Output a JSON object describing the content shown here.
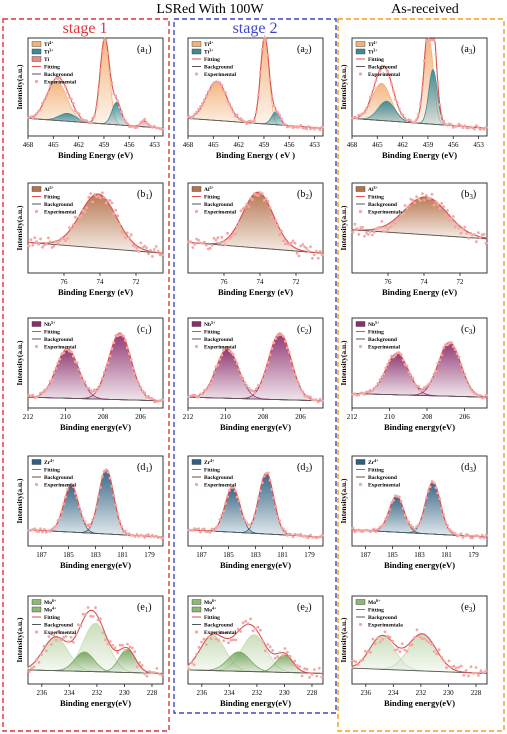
{
  "headers": {
    "top_left": "LSRed With 100W",
    "top_right": "As-received",
    "stage1": "stage 1",
    "stage2": "stage 2"
  },
  "colors": {
    "stage1_border": "#d9363e",
    "stage2_border": "#3f47c9",
    "asrec_border": "#f0a020",
    "fit": "#d9534f",
    "background_line": "#555555",
    "experimental": "#f4a6a6",
    "ti4": "#f3b27a",
    "ti3": "#3b8c9a",
    "ti": "#e88a8a",
    "al": "#b5734a",
    "nb": "#8a2f6b",
    "zr": "#2f5f80",
    "mo": "#8fb876"
  },
  "chart_data": [
    {
      "id": "a1",
      "type": "line",
      "label": "(a",
      "sub": "1",
      "xlim": [
        468,
        452
      ],
      "xticks": [
        468,
        465,
        462,
        459,
        456,
        453
      ],
      "xlabel": "Binding Energy (eV)",
      "ylabel": "Intensity(a.u.)",
      "legend": [
        {
          "text": "Ti4+",
          "kind": "fill",
          "color": "#f3b27a"
        },
        {
          "text": "Ti3+",
          "kind": "fill",
          "color": "#3b8c9a"
        },
        {
          "text": "Ti",
          "kind": "fill",
          "color": "#e88a8a"
        },
        {
          "text": "Fitting",
          "kind": "line",
          "color": "#d9534f"
        },
        {
          "text": "Background",
          "kind": "line",
          "color": "#555555"
        },
        {
          "text": "Experimental",
          "kind": "dot",
          "color": "#f4a6a6"
        }
      ],
      "bg": [
        0.08,
        0.18
      ],
      "peaks": [
        {
          "c": 464.6,
          "w": 1.2,
          "h": 0.4,
          "color": "#f3b27a"
        },
        {
          "c": 458.9,
          "w": 0.55,
          "h": 0.88,
          "color": "#f3b27a"
        },
        {
          "c": 457.5,
          "w": 0.55,
          "h": 0.23,
          "color": "#3b8c9a"
        },
        {
          "c": 463.3,
          "w": 1.0,
          "h": 0.08,
          "color": "#3b8c9a"
        },
        {
          "c": 454.2,
          "w": 0.4,
          "h": 0.06,
          "color": "#e88a8a"
        }
      ]
    },
    {
      "id": "a2",
      "type": "line",
      "label": "(a",
      "sub": "2",
      "xlim": [
        468,
        452
      ],
      "xticks": [
        468,
        465,
        462,
        459,
        456,
        453
      ],
      "xlabel": "Binding Energy ( eV )",
      "ylabel": "",
      "legend": [
        {
          "text": "Ti4+",
          "kind": "fill",
          "color": "#f3b27a"
        },
        {
          "text": "Ti3+",
          "kind": "fill",
          "color": "#3b8c9a"
        },
        {
          "text": "Fitting",
          "kind": "line",
          "color": "#d9534f"
        },
        {
          "text": "Background",
          "kind": "line",
          "color": "#555555"
        },
        {
          "text": "Experimental",
          "kind": "dot",
          "color": "#f4a6a6"
        }
      ],
      "bg": [
        0.08,
        0.18
      ],
      "peaks": [
        {
          "c": 464.6,
          "w": 1.2,
          "h": 0.4,
          "color": "#f3b27a"
        },
        {
          "c": 458.9,
          "w": 0.5,
          "h": 0.9,
          "color": "#f3b27a"
        },
        {
          "c": 457.6,
          "w": 0.5,
          "h": 0.13,
          "color": "#3b8c9a"
        }
      ]
    },
    {
      "id": "a3",
      "type": "line",
      "label": "(a",
      "sub": "3",
      "xlim": [
        468,
        452
      ],
      "xticks": [
        468,
        465,
        462,
        459,
        456,
        453
      ],
      "xlabel": "Binding Energy (eV)",
      "ylabel": "Intensity(a.u.)",
      "legend": [
        {
          "text": "Ti4+",
          "kind": "fill",
          "color": "#f3b27a"
        },
        {
          "text": "Ti3+",
          "kind": "fill",
          "color": "#3b8c9a"
        },
        {
          "text": "Fitting",
          "kind": "line",
          "color": "#d9534f"
        },
        {
          "text": "Background",
          "kind": "line",
          "color": "#555555"
        },
        {
          "text": "Experimental",
          "kind": "dot",
          "color": "#f4a6a6"
        }
      ],
      "bg": [
        0.08,
        0.18
      ],
      "peaks": [
        {
          "c": 464.5,
          "w": 1.1,
          "h": 0.38,
          "color": "#f3b27a"
        },
        {
          "c": 463.9,
          "w": 1.0,
          "h": 0.2,
          "color": "#3b8c9a"
        },
        {
          "c": 458.9,
          "w": 0.55,
          "h": 0.88,
          "color": "#f3b27a"
        },
        {
          "c": 458.4,
          "w": 0.5,
          "h": 0.56,
          "color": "#3b8c9a"
        }
      ]
    },
    {
      "id": "b1",
      "type": "line",
      "label": "(b",
      "sub": "1",
      "xlim": [
        78,
        70.5
      ],
      "xticks": [
        76,
        74,
        72
      ],
      "xlabel": "Binding Energy (eV)",
      "ylabel": "Intensity(a.u.)",
      "legend": [
        {
          "text": "Al3+",
          "kind": "fill",
          "color": "#b5734a"
        },
        {
          "text": "Fitting",
          "kind": "line",
          "color": "#d9534f"
        },
        {
          "text": "Background",
          "kind": "line",
          "color": "#555555"
        },
        {
          "text": "Experimental",
          "kind": "dot",
          "color": "#f4a6a6"
        }
      ],
      "bg": [
        0.22,
        0.34
      ],
      "peaks": [
        {
          "c": 74.1,
          "w": 1.0,
          "h": 0.6,
          "color": "#b5734a"
        }
      ]
    },
    {
      "id": "b2",
      "type": "line",
      "label": "(b",
      "sub": "2",
      "xlim": [
        78,
        70.5
      ],
      "xticks": [
        76,
        74,
        72
      ],
      "xlabel": "Binding Energy (eV)",
      "ylabel": "",
      "legend": [
        {
          "text": "Al3+",
          "kind": "fill",
          "color": "#b5734a"
        },
        {
          "text": "Fitting",
          "kind": "line",
          "color": "#d9534f"
        },
        {
          "text": "Background",
          "kind": "line",
          "color": "#555555"
        },
        {
          "text": "Experimental",
          "kind": "dot",
          "color": "#f4a6a6"
        }
      ],
      "bg": [
        0.22,
        0.34
      ],
      "peaks": [
        {
          "c": 74.1,
          "w": 0.85,
          "h": 0.62,
          "color": "#b5734a"
        }
      ]
    },
    {
      "id": "b3",
      "type": "line",
      "label": "(b",
      "sub": "3",
      "xlim": [
        78,
        70.5
      ],
      "xticks": [
        76,
        74,
        72
      ],
      "xlabel": "Binding Energy (eV)",
      "ylabel": "Intensity(a.u.)",
      "legend": [
        {
          "text": "Al3+",
          "kind": "fill",
          "color": "#b5734a"
        },
        {
          "text": "Fitting",
          "kind": "line",
          "color": "#d9534f"
        },
        {
          "text": "Background",
          "kind": "line",
          "color": "#555555"
        },
        {
          "text": "Experimentals",
          "kind": "dot",
          "color": "#f4a6a6"
        }
      ],
      "bg": [
        0.38,
        0.48
      ],
      "peaks": [
        {
          "c": 73.9,
          "w": 1.2,
          "h": 0.42,
          "color": "#b5734a"
        }
      ]
    },
    {
      "id": "c1",
      "type": "line",
      "label": "(c",
      "sub": "1",
      "xlim": [
        212,
        204.8
      ],
      "xticks": [
        212,
        210,
        208,
        206
      ],
      "xlabel": "Binding energy(eV)",
      "ylabel": "Intensity(a.u.)",
      "legend": [
        {
          "text": "Nb5+",
          "kind": "fill",
          "color": "#8a2f6b"
        },
        {
          "text": "Fitting",
          "kind": "line",
          "color": "#d9534f"
        },
        {
          "text": "Background",
          "kind": "line",
          "color": "#555555"
        },
        {
          "text": "Experimental",
          "kind": "dot",
          "color": "#f4a6a6"
        }
      ],
      "bg": [
        0.08,
        0.12
      ],
      "peaks": [
        {
          "c": 209.9,
          "w": 0.6,
          "h": 0.55,
          "color": "#8a2f6b"
        },
        {
          "c": 207.1,
          "w": 0.6,
          "h": 0.74,
          "color": "#8a2f6b"
        }
      ]
    },
    {
      "id": "c2",
      "type": "line",
      "label": "(c",
      "sub": "2",
      "xlim": [
        212,
        204.8
      ],
      "xticks": [
        212,
        210,
        208,
        206
      ],
      "xlabel": "Binding energy(eV)",
      "ylabel": "",
      "legend": [
        {
          "text": "Nb5+",
          "kind": "fill",
          "color": "#8a2f6b"
        },
        {
          "text": "Fitting",
          "kind": "line",
          "color": "#d9534f"
        },
        {
          "text": "Background",
          "kind": "line",
          "color": "#555555"
        },
        {
          "text": "Experimental",
          "kind": "dot",
          "color": "#f4a6a6"
        }
      ],
      "bg": [
        0.08,
        0.12
      ],
      "peaks": [
        {
          "c": 209.9,
          "w": 0.6,
          "h": 0.55,
          "color": "#8a2f6b"
        },
        {
          "c": 207.1,
          "w": 0.6,
          "h": 0.74,
          "color": "#8a2f6b"
        }
      ]
    },
    {
      "id": "c3",
      "type": "line",
      "label": "(c",
      "sub": "3",
      "xlim": [
        212,
        204.8
      ],
      "xticks": [
        212,
        210,
        208,
        206
      ],
      "xlabel": "Binding energy(eV)",
      "ylabel": "Intensity(a.u.)",
      "legend": [
        {
          "text": "Nb5+",
          "kind": "fill",
          "color": "#8a2f6b"
        },
        {
          "text": "Fitting",
          "kind": "line",
          "color": "#d9534f"
        },
        {
          "text": "Background",
          "kind": "line",
          "color": "#555555"
        },
        {
          "text": "Experimental",
          "kind": "dot",
          "color": "#f4a6a6"
        }
      ],
      "bg": [
        0.12,
        0.16
      ],
      "peaks": [
        {
          "c": 209.6,
          "w": 0.6,
          "h": 0.46,
          "color": "#8a2f6b"
        },
        {
          "c": 206.8,
          "w": 0.6,
          "h": 0.6,
          "color": "#8a2f6b"
        }
      ]
    },
    {
      "id": "d1",
      "type": "line",
      "label": "(d",
      "sub": "1",
      "xlim": [
        188,
        178
      ],
      "xticks": [
        187,
        185,
        183,
        181,
        179
      ],
      "xlabel": "Binding energy(eV)",
      "ylabel": "Intensity(a.u.)",
      "legend": [
        {
          "text": "Zr4+",
          "kind": "fill",
          "color": "#2f5f80"
        },
        {
          "text": "Fitting",
          "kind": "line",
          "color": "#d9534f"
        },
        {
          "text": "Background",
          "kind": "line",
          "color": "#555555"
        },
        {
          "text": "Experimental",
          "kind": "dot",
          "color": "#f4a6a6"
        }
      ],
      "bg": [
        0.1,
        0.18
      ],
      "peaks": [
        {
          "c": 184.8,
          "w": 0.55,
          "h": 0.52,
          "color": "#2f5f80"
        },
        {
          "c": 182.2,
          "w": 0.55,
          "h": 0.72,
          "color": "#2f5f80"
        }
      ]
    },
    {
      "id": "d2",
      "type": "line",
      "label": "(d",
      "sub": "2",
      "xlim": [
        188,
        178
      ],
      "xticks": [
        187,
        185,
        183,
        181,
        179
      ],
      "xlabel": "Binding energy(eV)",
      "ylabel": "",
      "legend": [
        {
          "text": "Zr4+",
          "kind": "fill",
          "color": "#2f5f80"
        },
        {
          "text": "Fitting",
          "kind": "line",
          "color": "#d9534f"
        },
        {
          "text": "Background",
          "kind": "line",
          "color": "#555555"
        },
        {
          "text": "Experimental",
          "kind": "dot",
          "color": "#f4a6a6"
        }
      ],
      "bg": [
        0.1,
        0.18
      ],
      "peaks": [
        {
          "c": 184.7,
          "w": 0.55,
          "h": 0.5,
          "color": "#2f5f80"
        },
        {
          "c": 182.2,
          "w": 0.55,
          "h": 0.68,
          "color": "#2f5f80"
        }
      ]
    },
    {
      "id": "d3",
      "type": "line",
      "label": "(d",
      "sub": "3",
      "xlim": [
        188,
        178
      ],
      "xticks": [
        187,
        185,
        183,
        181,
        179
      ],
      "xlabel": "Binding energy(eV)",
      "ylabel": "Intensity(a.u.)",
      "legend": [
        {
          "text": "Zr4+",
          "kind": "fill",
          "color": "#2f5f80"
        },
        {
          "text": "Fitting",
          "kind": "line",
          "color": "#d9534f"
        },
        {
          "text": "Background",
          "kind": "line",
          "color": "#555555"
        },
        {
          "text": "Experimental",
          "kind": "dot",
          "color": "#f4a6a6"
        }
      ],
      "bg": [
        0.1,
        0.18
      ],
      "peaks": [
        {
          "c": 184.7,
          "w": 0.55,
          "h": 0.4,
          "color": "#2f5f80"
        },
        {
          "c": 182.0,
          "w": 0.55,
          "h": 0.58,
          "color": "#2f5f80"
        }
      ]
    },
    {
      "id": "e1",
      "type": "line",
      "label": "(e",
      "sub": "1",
      "xlim": [
        237,
        227.2
      ],
      "xticks": [
        236,
        234,
        232,
        230,
        228
      ],
      "xlabel": "Binding energy(eV)",
      "ylabel": "Intensity(a.u.)",
      "legend": [
        {
          "text": "Mo6+",
          "kind": "fill",
          "color": "#8fb876"
        },
        {
          "text": "Mo4+",
          "kind": "fill",
          "color": "#8fb876"
        },
        {
          "text": "Fitting",
          "kind": "line",
          "color": "#d9534f"
        },
        {
          "text": "Background",
          "kind": "line",
          "color": "#555555"
        },
        {
          "text": "Experimental",
          "kind": "dot",
          "color": "#f4a6a6"
        }
      ],
      "bg": [
        0.12,
        0.16
      ],
      "peaks": [
        {
          "c": 235.0,
          "w": 0.9,
          "h": 0.38,
          "color": "#c9dcb8"
        },
        {
          "c": 232.1,
          "w": 0.9,
          "h": 0.55,
          "color": "#c9dcb8"
        },
        {
          "c": 232.9,
          "w": 0.7,
          "h": 0.22,
          "color": "#7aa864"
        },
        {
          "c": 229.8,
          "w": 0.6,
          "h": 0.26,
          "color": "#7aa864"
        }
      ]
    },
    {
      "id": "e2",
      "type": "line",
      "label": "(e",
      "sub": "2",
      "xlim": [
        237,
        227.2
      ],
      "xticks": [
        236,
        234,
        232,
        230,
        228
      ],
      "xlabel": "Binding energy(eV)",
      "ylabel": "",
      "legend": [
        {
          "text": "Mo6+",
          "kind": "fill",
          "color": "#8fb876"
        },
        {
          "text": "Mo4+",
          "kind": "fill",
          "color": "#8fb876"
        },
        {
          "text": "Fitting",
          "kind": "line",
          "color": "#d9534f"
        },
        {
          "text": "Background",
          "kind": "line",
          "color": "#555555"
        },
        {
          "text": "Experimental",
          "kind": "dot",
          "color": "#f4a6a6"
        }
      ],
      "bg": [
        0.12,
        0.16
      ],
      "peaks": [
        {
          "c": 235.2,
          "w": 0.9,
          "h": 0.4,
          "color": "#c9dcb8"
        },
        {
          "c": 232.2,
          "w": 0.9,
          "h": 0.42,
          "color": "#c9dcb8"
        },
        {
          "c": 233.3,
          "w": 0.8,
          "h": 0.22,
          "color": "#7aa864"
        },
        {
          "c": 230.0,
          "w": 0.6,
          "h": 0.2,
          "color": "#7aa864"
        }
      ]
    },
    {
      "id": "e3",
      "type": "line",
      "label": "(e",
      "sub": "3",
      "xlim": [
        237,
        227.2
      ],
      "xticks": [
        236,
        234,
        232,
        230,
        228
      ],
      "xlabel": "Binding energy(eV)",
      "ylabel": "Intensity(a.u.)",
      "legend": [
        {
          "text": "Mo6+",
          "kind": "fill",
          "color": "#8fb876"
        },
        {
          "text": "Fitting",
          "kind": "line",
          "color": "#d9534f"
        },
        {
          "text": "Background",
          "kind": "line",
          "color": "#555555"
        },
        {
          "text": "Experimentala",
          "kind": "dot",
          "color": "#f4a6a6"
        }
      ],
      "bg": [
        0.12,
        0.18
      ],
      "peaks": [
        {
          "c": 234.8,
          "w": 0.9,
          "h": 0.38,
          "color": "#c9dcb8"
        },
        {
          "c": 231.9,
          "w": 1.0,
          "h": 0.42,
          "color": "#c9dcb8"
        }
      ]
    }
  ]
}
